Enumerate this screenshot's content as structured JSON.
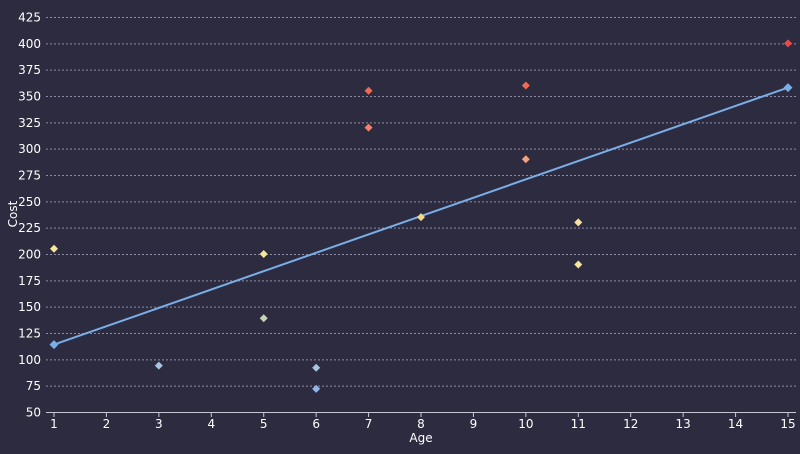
{
  "chart_data": {
    "type": "scatter",
    "title": "",
    "xlabel": "Age",
    "ylabel": "Cost",
    "xlim": [
      1,
      15
    ],
    "ylim": [
      50,
      425
    ],
    "x_ticks": [
      1,
      2,
      3,
      4,
      5,
      6,
      7,
      8,
      9,
      10,
      11,
      12,
      13,
      14,
      15
    ],
    "y_ticks": [
      50,
      75,
      100,
      125,
      150,
      175,
      200,
      225,
      250,
      275,
      300,
      325,
      350,
      375,
      400,
      425
    ],
    "grid": {
      "horizontal": true,
      "vertical": false,
      "style": "dashed"
    },
    "legend": null,
    "points": [
      {
        "x": 1,
        "y": 205,
        "color": "#f7e59a"
      },
      {
        "x": 3,
        "y": 94,
        "color": "#a8c4de"
      },
      {
        "x": 5,
        "y": 200,
        "color": "#f7e59a"
      },
      {
        "x": 5,
        "y": 139,
        "color": "#c5d2b4"
      },
      {
        "x": 6,
        "y": 92,
        "color": "#a8c4de"
      },
      {
        "x": 6,
        "y": 72,
        "color": "#8fb6e8"
      },
      {
        "x": 7,
        "y": 355,
        "color": "#ef6a55"
      },
      {
        "x": 7,
        "y": 320,
        "color": "#f2806a"
      },
      {
        "x": 8,
        "y": 235,
        "color": "#f2d98a"
      },
      {
        "x": 10,
        "y": 360,
        "color": "#ef6a55"
      },
      {
        "x": 10,
        "y": 290,
        "color": "#f4a07a"
      },
      {
        "x": 11,
        "y": 230,
        "color": "#f7e0a0"
      },
      {
        "x": 11,
        "y": 190,
        "color": "#f7e59a"
      },
      {
        "x": 15,
        "y": 400,
        "color": "#e84a4a"
      }
    ],
    "series": [
      {
        "name": "trend",
        "type": "line",
        "color": "#7aaee8",
        "x": [
          1,
          15
        ],
        "y": [
          114,
          358
        ],
        "markers": "diamond"
      }
    ]
  },
  "theme": {
    "background": "#2d2b3f",
    "grid_color": "#8e8ca6",
    "axis_color": "#c8c6d6",
    "text_color": "#ffffff"
  }
}
